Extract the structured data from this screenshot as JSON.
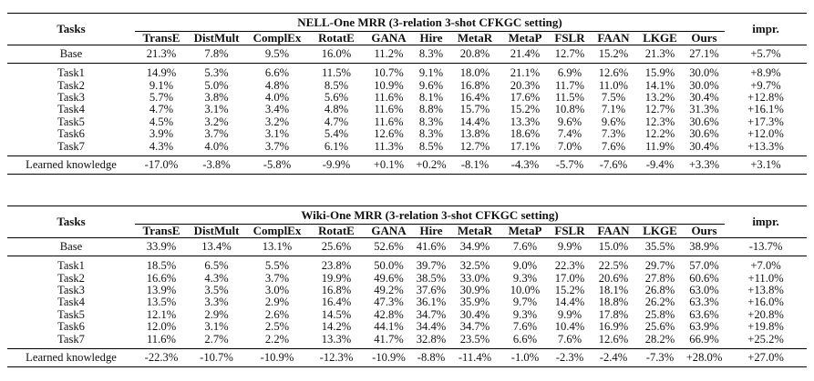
{
  "columns": [
    "TransE",
    "DistMult",
    "ComplEx",
    "RotatE",
    "GANA",
    "Hire",
    "MetaR",
    "MetaP",
    "FSLR",
    "FAAN",
    "LKGE",
    "Ours"
  ],
  "tasks_header": "Tasks",
  "impr_header": "impr.",
  "tables": [
    {
      "title": "NELL-One MRR (3-relation 3-shot CFKGC setting)",
      "base": {
        "label": "Base",
        "values": [
          "21.3%",
          "7.8%",
          "9.5%",
          "16.0%",
          "11.2%",
          "8.3%",
          "20.8%",
          "21.4%",
          "12.7%",
          "15.2%",
          "21.3%",
          "27.1%"
        ],
        "impr": "+5.7%"
      },
      "tasks": [
        {
          "label": "Task1",
          "values": [
            "14.9%",
            "5.3%",
            "6.6%",
            "11.5%",
            "10.7%",
            "9.1%",
            "18.0%",
            "21.1%",
            "6.9%",
            "12.6%",
            "15.9%",
            "30.0%"
          ],
          "impr": "+8.9%"
        },
        {
          "label": "Task2",
          "values": [
            "9.1%",
            "5.0%",
            "4.8%",
            "8.5%",
            "10.9%",
            "9.6%",
            "16.8%",
            "20.3%",
            "11.7%",
            "11.0%",
            "14.1%",
            "30.0%"
          ],
          "impr": "+9.7%"
        },
        {
          "label": "Task3",
          "values": [
            "5.7%",
            "3.8%",
            "4.0%",
            "5.6%",
            "11.6%",
            "8.1%",
            "16.4%",
            "17.6%",
            "11.5%",
            "7.5%",
            "13.2%",
            "30.4%"
          ],
          "impr": "+12.8%"
        },
        {
          "label": "Task4",
          "values": [
            "4.7%",
            "3.1%",
            "3.4%",
            "4.8%",
            "11.6%",
            "8.8%",
            "15.7%",
            "15.2%",
            "10.8%",
            "7.1%",
            "12.7%",
            "31.3%"
          ],
          "impr": "+16.1%"
        },
        {
          "label": "Task5",
          "values": [
            "4.5%",
            "3.2%",
            "3.2%",
            "4.7%",
            "11.6%",
            "8.3%",
            "14.4%",
            "13.3%",
            "9.6%",
            "9.6%",
            "12.3%",
            "30.6%"
          ],
          "impr": "+17.3%"
        },
        {
          "label": "Task6",
          "values": [
            "3.9%",
            "3.7%",
            "3.1%",
            "5.4%",
            "12.6%",
            "8.3%",
            "13.8%",
            "18.6%",
            "7.4%",
            "7.3%",
            "12.2%",
            "30.6%"
          ],
          "impr": "+12.0%"
        },
        {
          "label": "Task7",
          "values": [
            "4.3%",
            "4.0%",
            "3.7%",
            "6.1%",
            "11.3%",
            "8.5%",
            "12.7%",
            "17.1%",
            "7.0%",
            "7.6%",
            "11.9%",
            "30.4%"
          ],
          "impr": "+13.3%"
        }
      ],
      "learned": {
        "label": "Learned knowledge",
        "values": [
          "-17.0%",
          "-3.8%",
          "-5.8%",
          "-9.9%",
          "+0.1%",
          "+0.2%",
          "-8.1%",
          "-4.3%",
          "-5.7%",
          "-7.6%",
          "-9.4%",
          "+3.3%"
        ],
        "impr": "+3.1%"
      }
    },
    {
      "title": "Wiki-One MRR (3-relation 3-shot CFKGC setting)",
      "base": {
        "label": "Base",
        "values": [
          "33.9%",
          "13.4%",
          "13.1%",
          "25.6%",
          "52.6%",
          "41.6%",
          "34.9%",
          "7.6%",
          "9.9%",
          "15.0%",
          "35.5%",
          "38.9%"
        ],
        "impr": "-13.7%"
      },
      "tasks": [
        {
          "label": "Task1",
          "values": [
            "18.5%",
            "6.5%",
            "5.5%",
            "23.8%",
            "50.0%",
            "39.7%",
            "32.5%",
            "9.0%",
            "22.3%",
            "22.5%",
            "29.7%",
            "57.0%"
          ],
          "impr": "+7.0%"
        },
        {
          "label": "Task2",
          "values": [
            "16.6%",
            "4.3%",
            "3.7%",
            "19.9%",
            "49.6%",
            "38.5%",
            "33.0%",
            "9.3%",
            "17.0%",
            "20.6%",
            "27.8%",
            "60.6%"
          ],
          "impr": "+11.0%"
        },
        {
          "label": "Task3",
          "values": [
            "13.9%",
            "3.5%",
            "3.0%",
            "16.8%",
            "49.2%",
            "37.6%",
            "30.9%",
            "10.0%",
            "15.2%",
            "18.1%",
            "26.8%",
            "63.0%"
          ],
          "impr": "+13.8%"
        },
        {
          "label": "Task4",
          "values": [
            "13.5%",
            "3.3%",
            "2.9%",
            "16.4%",
            "47.3%",
            "36.1%",
            "35.9%",
            "9.7%",
            "14.4%",
            "18.8%",
            "26.2%",
            "63.3%"
          ],
          "impr": "+16.0%"
        },
        {
          "label": "Task5",
          "values": [
            "12.1%",
            "2.9%",
            "2.6%",
            "14.5%",
            "42.8%",
            "34.7%",
            "30.4%",
            "9.3%",
            "9.9%",
            "17.8%",
            "25.8%",
            "63.6%"
          ],
          "impr": "+20.8%"
        },
        {
          "label": "Task6",
          "values": [
            "12.0%",
            "3.1%",
            "2.5%",
            "14.2%",
            "44.1%",
            "34.4%",
            "34.7%",
            "7.6%",
            "10.4%",
            "16.9%",
            "25.6%",
            "63.9%"
          ],
          "impr": "+19.8%"
        },
        {
          "label": "Task7",
          "values": [
            "11.6%",
            "2.7%",
            "2.2%",
            "13.3%",
            "41.7%",
            "32.8%",
            "23.5%",
            "6.6%",
            "7.6%",
            "12.6%",
            "28.2%",
            "66.9%"
          ],
          "impr": "+25.2%"
        }
      ],
      "learned": {
        "label": "Learned knowledge",
        "values": [
          "-22.3%",
          "-10.7%",
          "-10.9%",
          "-12.3%",
          "-10.9%",
          "-8.8%",
          "-11.4%",
          "-1.0%",
          "-2.3%",
          "-2.4%",
          "-7.3%",
          "+28.0%"
        ],
        "impr": "+27.0%"
      }
    }
  ]
}
